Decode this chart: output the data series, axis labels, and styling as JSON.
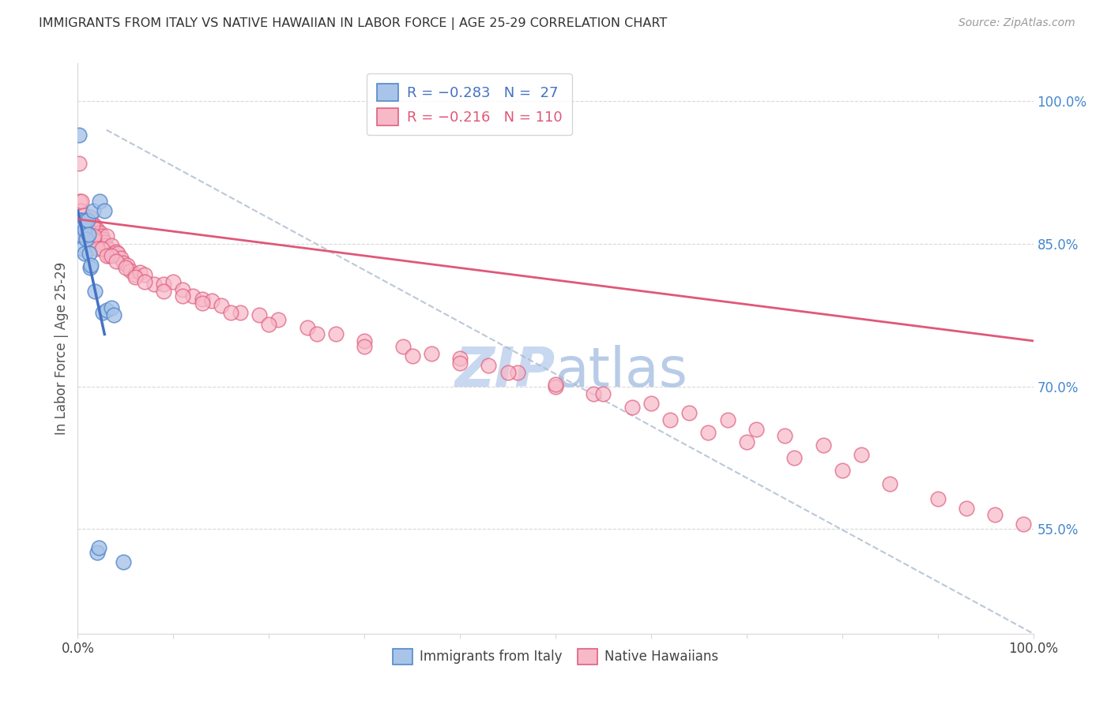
{
  "title": "IMMIGRANTS FROM ITALY VS NATIVE HAWAIIAN IN LABOR FORCE | AGE 25-29 CORRELATION CHART",
  "source": "Source: ZipAtlas.com",
  "ylabel": "In Labor Force | Age 25-29",
  "italy_color": "#a8c4e8",
  "hawaii_color": "#f7b8c8",
  "italy_edge_color": "#5588cc",
  "hawaii_edge_color": "#e06080",
  "italy_line_color": "#4472c4",
  "hawaii_line_color": "#e05878",
  "grid_color": "#d8d8d8",
  "watermark_zip_color": "#c8d8f0",
  "watermark_atlas_color": "#b8cce8",
  "right_tick_color": "#4488cc",
  "xlim": [
    0.0,
    1.0
  ],
  "ylim": [
    0.44,
    1.04
  ],
  "right_yticks": [
    0.55,
    0.7,
    0.85,
    1.0
  ],
  "right_yticklabels": [
    "55.0%",
    "70.0%",
    "85.0%",
    "100.0%"
  ],
  "italy_x": [
    0.001,
    0.002,
    0.003,
    0.004,
    0.005,
    0.005,
    0.006,
    0.007,
    0.007,
    0.008,
    0.009,
    0.01,
    0.011,
    0.012,
    0.013,
    0.014,
    0.016,
    0.018,
    0.02,
    0.022,
    0.023,
    0.026,
    0.028,
    0.03,
    0.035,
    0.038,
    0.048
  ],
  "italy_y": [
    0.965,
    0.875,
    0.875,
    0.87,
    0.858,
    0.845,
    0.87,
    0.865,
    0.84,
    0.875,
    0.855,
    0.875,
    0.86,
    0.84,
    0.825,
    0.828,
    0.885,
    0.8,
    0.525,
    0.53,
    0.895,
    0.778,
    0.885,
    0.78,
    0.783,
    0.775,
    0.515
  ],
  "hawaii_x": [
    0.001,
    0.002,
    0.003,
    0.004,
    0.004,
    0.005,
    0.006,
    0.006,
    0.007,
    0.008,
    0.009,
    0.009,
    0.01,
    0.011,
    0.012,
    0.013,
    0.013,
    0.014,
    0.015,
    0.016,
    0.017,
    0.018,
    0.019,
    0.02,
    0.021,
    0.022,
    0.023,
    0.024,
    0.025,
    0.026,
    0.027,
    0.028,
    0.029,
    0.03,
    0.032,
    0.033,
    0.035,
    0.037,
    0.04,
    0.042,
    0.045,
    0.048,
    0.052,
    0.055,
    0.06,
    0.065,
    0.07,
    0.08,
    0.09,
    0.1,
    0.11,
    0.12,
    0.13,
    0.14,
    0.15,
    0.17,
    0.19,
    0.21,
    0.24,
    0.27,
    0.3,
    0.34,
    0.37,
    0.4,
    0.43,
    0.46,
    0.5,
    0.54,
    0.58,
    0.62,
    0.66,
    0.7,
    0.75,
    0.8,
    0.85,
    0.9,
    0.93,
    0.96,
    0.99,
    0.015,
    0.016,
    0.017,
    0.02,
    0.025,
    0.03,
    0.035,
    0.04,
    0.05,
    0.06,
    0.07,
    0.09,
    0.11,
    0.13,
    0.16,
    0.2,
    0.25,
    0.3,
    0.35,
    0.4,
    0.45,
    0.5,
    0.55,
    0.6,
    0.64,
    0.68,
    0.71,
    0.74,
    0.78,
    0.82
  ],
  "hawaii_y": [
    0.935,
    0.895,
    0.885,
    0.875,
    0.895,
    0.865,
    0.88,
    0.858,
    0.868,
    0.865,
    0.858,
    0.875,
    0.86,
    0.87,
    0.862,
    0.878,
    0.862,
    0.868,
    0.862,
    0.858,
    0.87,
    0.865,
    0.86,
    0.865,
    0.862,
    0.855,
    0.85,
    0.862,
    0.858,
    0.855,
    0.848,
    0.852,
    0.848,
    0.858,
    0.845,
    0.838,
    0.848,
    0.84,
    0.842,
    0.84,
    0.835,
    0.83,
    0.828,
    0.822,
    0.818,
    0.82,
    0.818,
    0.808,
    0.808,
    0.81,
    0.802,
    0.795,
    0.792,
    0.79,
    0.785,
    0.778,
    0.775,
    0.77,
    0.762,
    0.755,
    0.748,
    0.742,
    0.735,
    0.73,
    0.722,
    0.715,
    0.7,
    0.692,
    0.678,
    0.665,
    0.652,
    0.642,
    0.625,
    0.612,
    0.598,
    0.582,
    0.572,
    0.565,
    0.555,
    0.87,
    0.855,
    0.858,
    0.845,
    0.845,
    0.838,
    0.838,
    0.832,
    0.825,
    0.815,
    0.81,
    0.8,
    0.795,
    0.788,
    0.778,
    0.765,
    0.755,
    0.742,
    0.732,
    0.725,
    0.715,
    0.702,
    0.692,
    0.682,
    0.672,
    0.665,
    0.655,
    0.648,
    0.638,
    0.628
  ],
  "italy_line_x": [
    0.0,
    0.028
  ],
  "italy_line_y": [
    0.885,
    0.755
  ],
  "hawaii_line_x": [
    0.0,
    1.0
  ],
  "hawaii_line_y": [
    0.876,
    0.748
  ],
  "dash_line_x": [
    0.03,
    1.0
  ],
  "dash_line_y": [
    0.97,
    0.44
  ]
}
